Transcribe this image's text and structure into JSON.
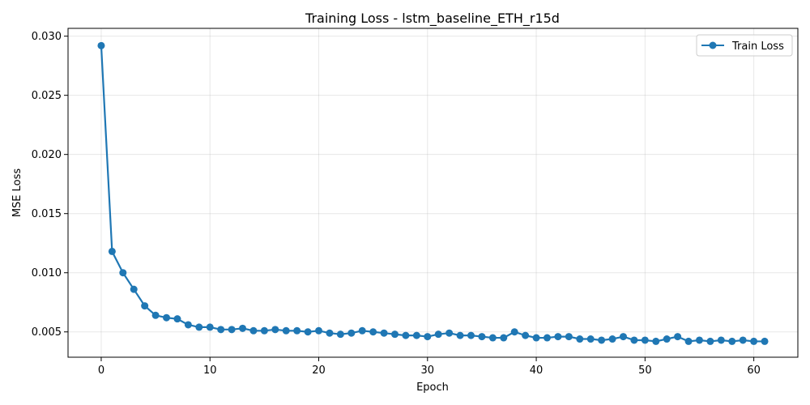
{
  "chart_data": {
    "type": "line",
    "title": "Training Loss - lstm_baseline_ETH_r15d",
    "xlabel": "Epoch",
    "ylabel": "MSE Loss",
    "xlim": [
      -3.05,
      64.05
    ],
    "ylim": [
      0.00286,
      0.03066
    ],
    "xticks": [
      0,
      10,
      20,
      30,
      40,
      50,
      60
    ],
    "yticks": [
      0.005,
      0.01,
      0.015,
      0.02,
      0.025,
      0.03
    ],
    "ytick_labels": [
      "0.005",
      "0.010",
      "0.015",
      "0.020",
      "0.025",
      "0.030"
    ],
    "grid": true,
    "legend_position": "top-right",
    "series": [
      {
        "name": "Train Loss",
        "color": "#1f77b4",
        "marker": "circle",
        "x": [
          0,
          1,
          2,
          3,
          4,
          5,
          6,
          7,
          8,
          9,
          10,
          11,
          12,
          13,
          14,
          15,
          16,
          17,
          18,
          19,
          20,
          21,
          22,
          23,
          24,
          25,
          26,
          27,
          28,
          29,
          30,
          31,
          32,
          33,
          34,
          35,
          36,
          37,
          38,
          39,
          40,
          41,
          42,
          43,
          44,
          45,
          46,
          47,
          48,
          49,
          50,
          51,
          52,
          53,
          54,
          55,
          56,
          57,
          58,
          59,
          60,
          61
        ],
        "y": [
          0.0292,
          0.0118,
          0.01,
          0.0086,
          0.0072,
          0.0064,
          0.0062,
          0.0061,
          0.0056,
          0.0054,
          0.0054,
          0.0052,
          0.0052,
          0.0053,
          0.0051,
          0.0051,
          0.0052,
          0.0051,
          0.0051,
          0.005,
          0.0051,
          0.0049,
          0.0048,
          0.0049,
          0.0051,
          0.005,
          0.0049,
          0.0048,
          0.0047,
          0.0047,
          0.0046,
          0.0048,
          0.0049,
          0.0047,
          0.0047,
          0.0046,
          0.0045,
          0.0045,
          0.005,
          0.0047,
          0.0045,
          0.0045,
          0.0046,
          0.0046,
          0.0044,
          0.0044,
          0.0043,
          0.0044,
          0.0046,
          0.0043,
          0.0043,
          0.0042,
          0.0044,
          0.0046,
          0.0042,
          0.0043,
          0.0042,
          0.0043,
          0.0042,
          0.0043,
          0.0042,
          0.0042
        ]
      }
    ]
  }
}
